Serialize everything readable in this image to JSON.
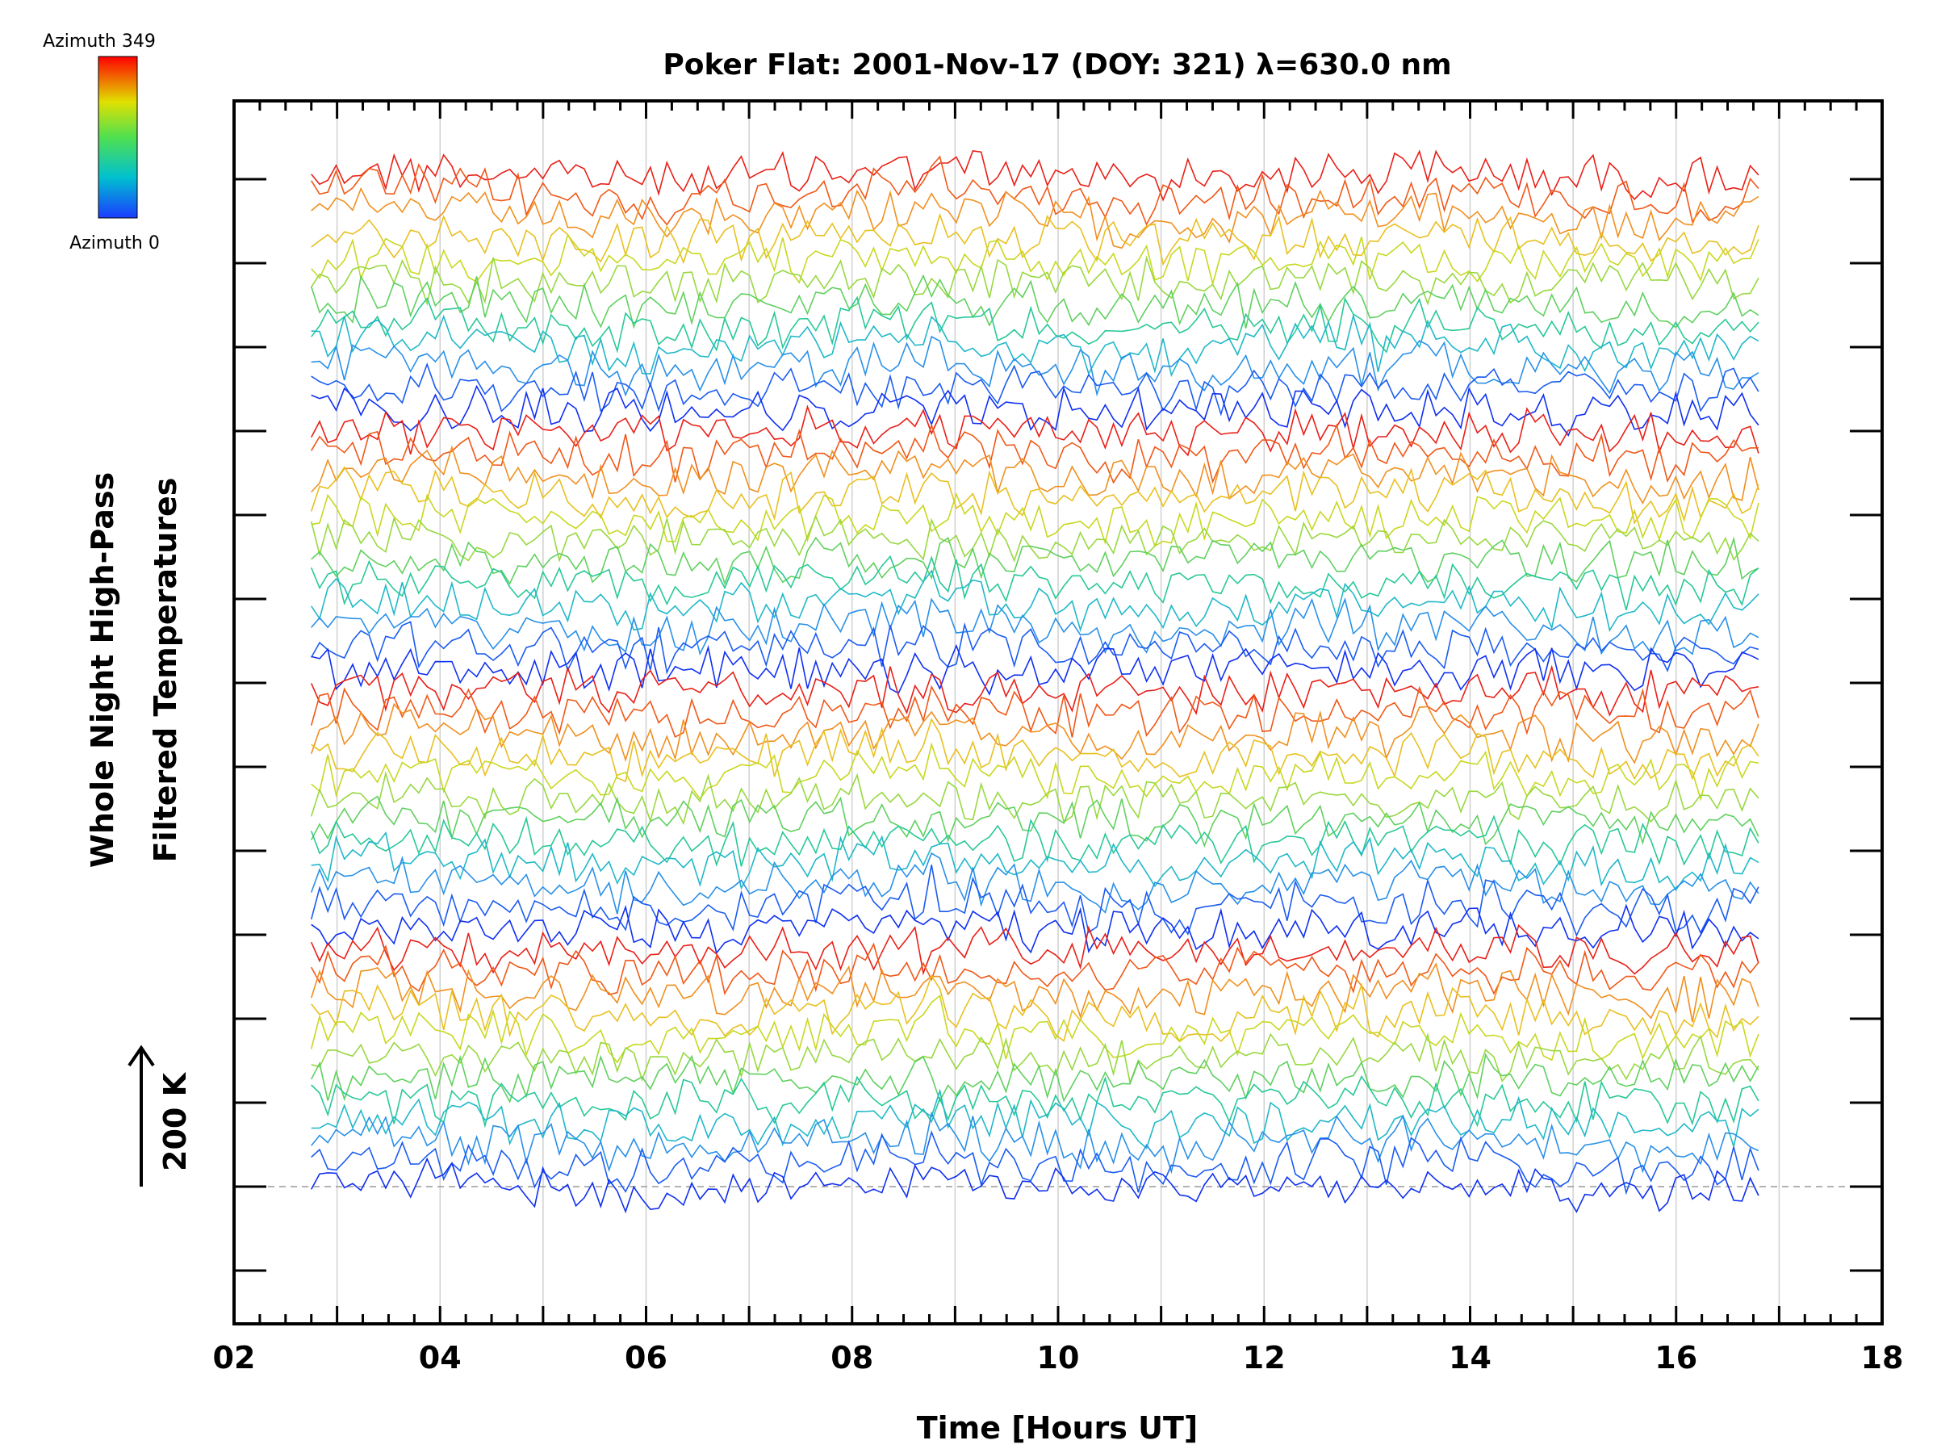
{
  "chart_data": {
    "type": "line",
    "title": "Poker Flat: 2001-Nov-17 (DOY: 321) λ=630.0 nm",
    "xlabel": "Time [Hours UT]",
    "ylabel": [
      "Whole Night High-Pass",
      "Filtered Temperatures"
    ],
    "xlim": [
      2,
      18
    ],
    "x_ticks": [
      "02",
      "04",
      "06",
      "08",
      "10",
      "12",
      "14",
      "16",
      "18"
    ],
    "x_range_data": [
      2.75,
      16.8
    ],
    "y_offset_step_K": 200,
    "scale_bar_label": "200 K",
    "n_traces": 48,
    "grid": "vertical",
    "colorbar": {
      "top_label": "Azimuth 349",
      "bottom_label": "Azimuth 0",
      "colors": [
        "#ff0000",
        "#ff8000",
        "#e0e000",
        "#80e000",
        "#00d070",
        "#00b0e0",
        "#0040ff"
      ]
    }
  }
}
